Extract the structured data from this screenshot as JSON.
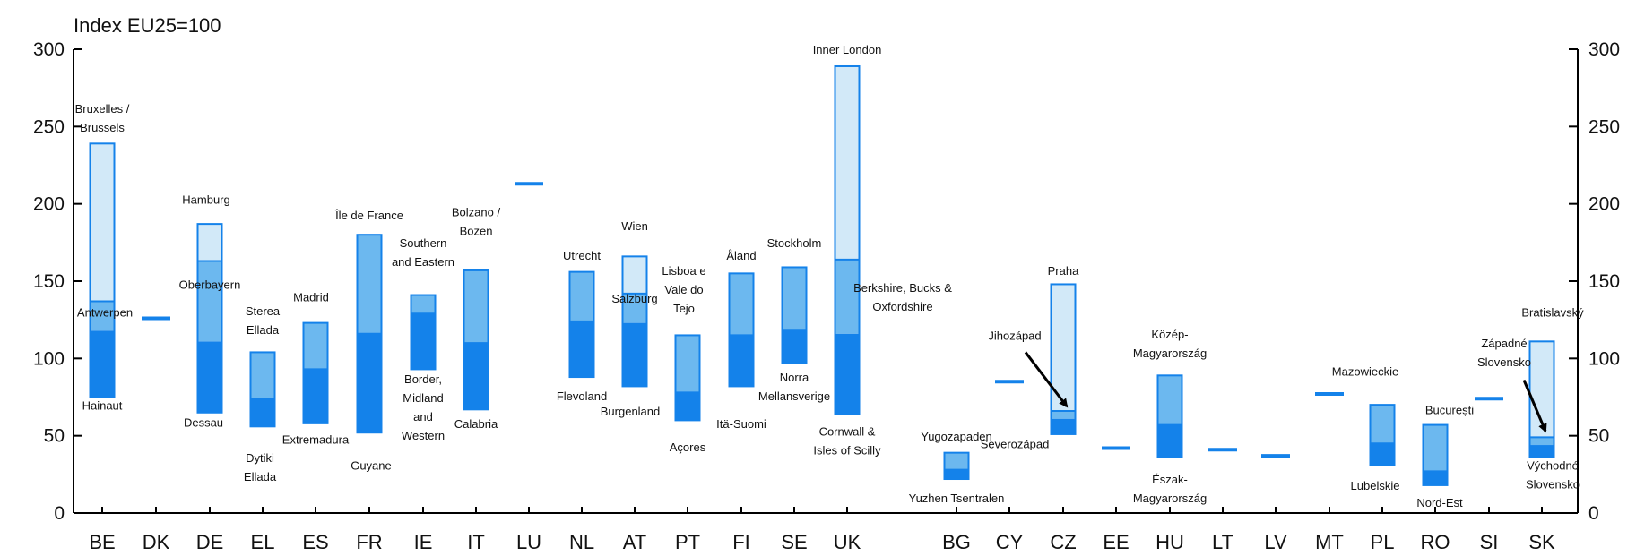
{
  "chart_data": {
    "type": "bar",
    "ylabel": "Index EU25=100",
    "ylim": [
      0,
      300
    ],
    "yticks": [
      0,
      50,
      100,
      150,
      200,
      250,
      300
    ],
    "grid": false,
    "colors": {
      "light": "#d2e9f8",
      "mid": "#6cb8ef",
      "dark": "#1482ea",
      "outline": "#1482ea",
      "axis": "#000000"
    },
    "categories": [
      {
        "code": "BE",
        "min": 75,
        "b1": 118,
        "b2": 137,
        "max": 239
      },
      {
        "code": "DK",
        "min": 126,
        "b1": 126,
        "b2": 126,
        "max": 126,
        "line": true
      },
      {
        "code": "DE",
        "min": 65,
        "b1": 111,
        "b2": 163,
        "max": 187
      },
      {
        "code": "EL",
        "min": 56,
        "b1": 74,
        "b2": 74,
        "max": 104
      },
      {
        "code": "ES",
        "min": 58,
        "b1": 93,
        "b2": 93,
        "max": 123
      },
      {
        "code": "FR",
        "min": 52,
        "b1": 116,
        "b2": 116,
        "max": 180
      },
      {
        "code": "IE",
        "min": 93,
        "b1": 129,
        "b2": 129,
        "max": 141
      },
      {
        "code": "IT",
        "min": 67,
        "b1": 110,
        "b2": 110,
        "max": 157
      },
      {
        "code": "LU",
        "min": 213,
        "b1": 213,
        "b2": 213,
        "max": 213,
        "line": true
      },
      {
        "code": "NL",
        "min": 88,
        "b1": 124,
        "b2": 124,
        "max": 156
      },
      {
        "code": "AT",
        "min": 82,
        "b1": 123,
        "b2": 142,
        "max": 166
      },
      {
        "code": "PT",
        "min": 60,
        "b1": 78,
        "b2": 78,
        "max": 115
      },
      {
        "code": "FI",
        "min": 82,
        "b1": 115,
        "b2": 115,
        "max": 155
      },
      {
        "code": "SE",
        "min": 97,
        "b1": 118,
        "b2": 118,
        "max": 159
      },
      {
        "code": "UK",
        "min": 64,
        "b1": 116,
        "b2": 164,
        "max": 289
      },
      {
        "code": "BG",
        "min": 22,
        "b1": 28,
        "b2": 28,
        "max": 39
      },
      {
        "code": "CY",
        "min": 85,
        "b1": 85,
        "b2": 85,
        "max": 85,
        "line": true
      },
      {
        "code": "CZ",
        "min": 51,
        "b1": 61,
        "b2": 66,
        "max": 148
      },
      {
        "code": "EE",
        "min": 42,
        "b1": 42,
        "b2": 42,
        "max": 42,
        "line": true
      },
      {
        "code": "HU",
        "min": 36,
        "b1": 57,
        "b2": 57,
        "max": 89
      },
      {
        "code": "LT",
        "min": 41,
        "b1": 41,
        "b2": 41,
        "max": 41,
        "line": true
      },
      {
        "code": "LV",
        "min": 37,
        "b1": 37,
        "b2": 37,
        "max": 37,
        "line": true
      },
      {
        "code": "MT",
        "min": 77,
        "b1": 77,
        "b2": 77,
        "max": 77,
        "line": true
      },
      {
        "code": "PL",
        "min": 31,
        "b1": 45,
        "b2": 45,
        "max": 70
      },
      {
        "code": "RO",
        "min": 18,
        "b1": 27,
        "b2": 27,
        "max": 57
      },
      {
        "code": "SI",
        "min": 74,
        "b1": 74,
        "b2": 74,
        "max": 74,
        "line": true
      },
      {
        "code": "SK",
        "min": 36,
        "b1": 44,
        "b2": 49,
        "max": 111
      }
    ],
    "annotations": [
      {
        "cat": "BE",
        "lines": [
          "Bruxelles /",
          "Brussels"
        ],
        "at": 259,
        "dx": 0,
        "anchor": "middle"
      },
      {
        "cat": "BE",
        "lines": [
          "Antwerpen"
        ],
        "at": 127,
        "dx": 3,
        "anchor": "middle"
      },
      {
        "cat": "BE",
        "lines": [
          "Hainaut"
        ],
        "at": 67,
        "dx": 0,
        "anchor": "middle"
      },
      {
        "cat": "DE",
        "lines": [
          "Hamburg"
        ],
        "at": 200,
        "dx": -4,
        "anchor": "middle"
      },
      {
        "cat": "DE",
        "lines": [
          "Oberbayern"
        ],
        "at": 145,
        "dx": 0,
        "anchor": "middle"
      },
      {
        "cat": "DE",
        "lines": [
          "Dessau"
        ],
        "at": 56,
        "dx": -7,
        "anchor": "middle"
      },
      {
        "cat": "EL",
        "lines": [
          "Sterea",
          "Ellada"
        ],
        "at": 128,
        "dx": 0,
        "anchor": "middle"
      },
      {
        "cat": "EL",
        "lines": [
          "Dytiki",
          "Ellada"
        ],
        "at": 33,
        "dx": -3,
        "anchor": "middle"
      },
      {
        "cat": "ES",
        "lines": [
          "Madrid"
        ],
        "at": 137,
        "dx": -5,
        "anchor": "middle"
      },
      {
        "cat": "ES",
        "lines": [
          "Extremadura"
        ],
        "at": 45,
        "dx": 0,
        "anchor": "middle"
      },
      {
        "cat": "FR",
        "lines": [
          "Île de France"
        ],
        "at": 190,
        "dx": 0,
        "anchor": "middle"
      },
      {
        "cat": "FR",
        "lines": [
          "Guyane"
        ],
        "at": 28,
        "dx": 2,
        "anchor": "middle"
      },
      {
        "cat": "IE",
        "lines": [
          "Southern",
          "and Eastern"
        ],
        "at": 172,
        "dx": 0,
        "anchor": "middle"
      },
      {
        "cat": "IE",
        "lines": [
          "Border,",
          "Midland",
          "and",
          "Western"
        ],
        "at": 84,
        "dx": 0,
        "anchor": "middle"
      },
      {
        "cat": "IT",
        "lines": [
          "Bolzano /",
          "Bozen"
        ],
        "at": 192,
        "dx": 0,
        "anchor": "middle"
      },
      {
        "cat": "IT",
        "lines": [
          "Calabria"
        ],
        "at": 55,
        "dx": 0,
        "anchor": "middle"
      },
      {
        "cat": "NL",
        "lines": [
          "Utrecht"
        ],
        "at": 164,
        "dx": 0,
        "anchor": "middle"
      },
      {
        "cat": "NL",
        "lines": [
          "Flevoland"
        ],
        "at": 73,
        "dx": 0,
        "anchor": "middle"
      },
      {
        "cat": "AT",
        "lines": [
          "Wien"
        ],
        "at": 183,
        "dx": 0,
        "anchor": "middle"
      },
      {
        "cat": "AT",
        "lines": [
          "Salzburg"
        ],
        "at": 136,
        "dx": 0,
        "anchor": "middle"
      },
      {
        "cat": "AT",
        "lines": [
          "Burgenland"
        ],
        "at": 63,
        "dx": -5,
        "anchor": "middle"
      },
      {
        "cat": "PT",
        "lines": [
          "Lisboa e",
          "Vale do",
          "Tejo"
        ],
        "at": 154,
        "dx": -4,
        "anchor": "middle"
      },
      {
        "cat": "PT",
        "lines": [
          "Açores"
        ],
        "at": 40,
        "dx": 0,
        "anchor": "middle"
      },
      {
        "cat": "FI",
        "lines": [
          "Åland"
        ],
        "at": 164,
        "dx": 0,
        "anchor": "middle"
      },
      {
        "cat": "FI",
        "lines": [
          "Itä-Suomi"
        ],
        "at": 55,
        "dx": 0,
        "anchor": "middle"
      },
      {
        "cat": "SE",
        "lines": [
          "Stockholm"
        ],
        "at": 172,
        "dx": 0,
        "anchor": "middle"
      },
      {
        "cat": "SE",
        "lines": [
          "Norra",
          "Mellansverige"
        ],
        "at": 85,
        "dx": 0,
        "anchor": "middle"
      },
      {
        "cat": "UK",
        "lines": [
          "Inner London"
        ],
        "at": 297,
        "dx": 0,
        "anchor": "middle"
      },
      {
        "cat": "UK",
        "lines": [
          "Berkshire, Bucks &",
          "Oxfordshire"
        ],
        "at": 143,
        "dx": 62,
        "anchor": "middle"
      },
      {
        "cat": "UK",
        "lines": [
          "Cornwall &",
          "Isles of Scilly"
        ],
        "at": 50,
        "dx": 0,
        "anchor": "middle"
      },
      {
        "cat": "BG",
        "lines": [
          "Yugozapaden"
        ],
        "at": 47,
        "dx": 0,
        "anchor": "middle"
      },
      {
        "cat": "BG",
        "lines": [
          "Yuzhen Tsentralen"
        ],
        "at": 7,
        "dx": 0,
        "anchor": "middle"
      },
      {
        "cat": "CZ",
        "lines": [
          "Praha"
        ],
        "at": 154,
        "dx": 0,
        "anchor": "middle"
      },
      {
        "cat": "CZ",
        "lines": [
          "Jihozápad"
        ],
        "at": 112,
        "dx": -54,
        "anchor": "middle"
      },
      {
        "cat": "CZ",
        "lines": [
          "Severozápad"
        ],
        "at": 42,
        "dx": -54,
        "anchor": "middle"
      },
      {
        "cat": "HU",
        "lines": [
          "Közép-",
          "Magyarország"
        ],
        "at": 113,
        "dx": 0,
        "anchor": "middle"
      },
      {
        "cat": "HU",
        "lines": [
          "Észak-",
          "Magyarország"
        ],
        "at": 19,
        "dx": 0,
        "anchor": "middle"
      },
      {
        "cat": "MT",
        "lines": [
          "Mazowieckie"
        ],
        "at": 89,
        "dx": 40,
        "anchor": "middle"
      },
      {
        "cat": "PL",
        "lines": [
          "Lubelskie"
        ],
        "at": 15,
        "dx": -8,
        "anchor": "middle"
      },
      {
        "cat": "RO",
        "lines": [
          "București"
        ],
        "at": 64,
        "dx": 16,
        "anchor": "middle"
      },
      {
        "cat": "RO",
        "lines": [
          "Nord-Est"
        ],
        "at": 4,
        "dx": 5,
        "anchor": "middle"
      },
      {
        "cat": "SK",
        "lines": [
          "Bratislavský"
        ],
        "at": 127,
        "dx": 12,
        "anchor": "middle"
      },
      {
        "cat": "SK",
        "lines": [
          "Západné",
          "Slovensko"
        ],
        "at": 107,
        "dx": -42,
        "anchor": "middle"
      },
      {
        "cat": "SK",
        "lines": [
          "Východné",
          "Slovensko"
        ],
        "at": 28,
        "dx": 12,
        "anchor": "middle"
      }
    ],
    "arrows": [
      {
        "from_cat": "CZ",
        "from_dx": -42,
        "from_y": 104,
        "to_cat": "CZ",
        "to_dx": 4,
        "to_y": 69
      },
      {
        "from_cat": "SK",
        "from_dx": -20,
        "from_y": 86,
        "to_cat": "SK",
        "to_dx": 4,
        "to_y": 53
      }
    ]
  }
}
